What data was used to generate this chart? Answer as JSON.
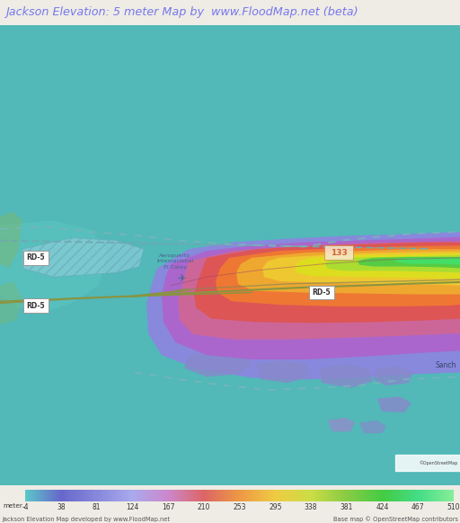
{
  "title": "Jackson Elevation: 5 meter Map by  www.FloodMap.net (beta)",
  "title_color": "#7777ee",
  "title_bg": "#eeece4",
  "map_bg": "#52b8b8",
  "bottom_bar_text1": "Jackson Elevation Map developed by www.FloodMap.net",
  "bottom_bar_text2": "Base map © OpenStreetMap contributors",
  "colorbar_values": [
    -4,
    38,
    81,
    124,
    167,
    210,
    253,
    295,
    338,
    381,
    424,
    467,
    510
  ],
  "colorbar_colors": [
    "#5bc8c8",
    "#6868cc",
    "#8888dd",
    "#aaaaee",
    "#cc88cc",
    "#dd6666",
    "#ee9944",
    "#eecc44",
    "#ccdd44",
    "#88cc44",
    "#44cc44",
    "#44dd88",
    "#88ee99"
  ],
  "fig_width": 5.12,
  "fig_height": 5.82,
  "dpi": 100
}
